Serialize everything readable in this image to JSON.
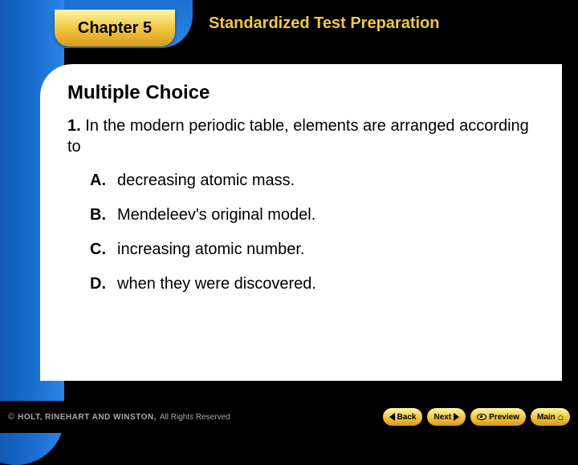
{
  "header": {
    "chapter_label": "Chapter 5",
    "section_title": "Standardized Test Preparation"
  },
  "content": {
    "heading": "Multiple Choice",
    "question": {
      "number": "1.",
      "stem": "In the modern periodic table, elements are arranged according to"
    },
    "options": [
      {
        "letter": "A.",
        "text": "decreasing atomic mass."
      },
      {
        "letter": "B.",
        "text": "Mendeleev's original model."
      },
      {
        "letter": "C.",
        "text": "increasing atomic number."
      },
      {
        "letter": "D.",
        "text": "when they were discovered."
      }
    ]
  },
  "footer": {
    "copyright_brand": "HOLT, RINEHART AND WINSTON,",
    "copyright_tail": "All Rights Reserved",
    "nav": {
      "back": "Back",
      "next": "Next",
      "preview": "Preview",
      "main": "Main"
    }
  },
  "colors": {
    "background": "#000000",
    "sheet": "#ffffff",
    "gold_light": "#fff6a8",
    "gold_mid": "#f2c843",
    "gold_dark": "#d79b1a",
    "blue_dark": "#0a4aa0",
    "blue_mid": "#1668c8",
    "blue_light": "#2a86e8",
    "title_text": "#f2c843"
  },
  "typography": {
    "chapter_fontsize": 20,
    "section_title_fontsize": 20,
    "heading_fontsize": 24,
    "body_fontsize": 20,
    "footer_fontsize": 10
  }
}
